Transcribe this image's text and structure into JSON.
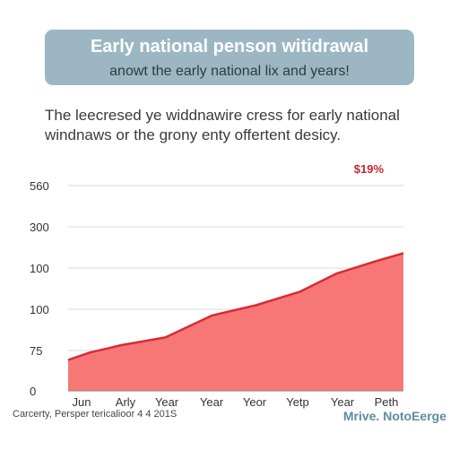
{
  "header": {
    "title": "Early national penson witidrawal",
    "subtitle": "anowt the early national lix and years!"
  },
  "description": {
    "line1": "The leecresed ye widdnawire cress for early national",
    "line2": "windnaws or the grony enty offertent desicy."
  },
  "footer": {
    "source": "Carcerty, Persper tericalioor 4 4 201S",
    "brand": "Mrive. NotoEerge"
  },
  "colors": {
    "banner": "#9cb7c3",
    "area_fill": "#f66b6b",
    "line": "#d92b35",
    "annotation": "#c4282f"
  },
  "chart_data": {
    "type": "area",
    "title": "Early national penson witidrawal",
    "categories": [
      "Jun",
      "Arly",
      "Year",
      "Year",
      "Yeor",
      "Yetp",
      "Year",
      "Peth"
    ],
    "y_tick_labels": [
      "0",
      "75",
      "100",
      "100",
      "300",
      "560"
    ],
    "grid": true,
    "annotation": "$19%",
    "values": [
      0.125,
      0.185,
      0.216,
      0.305,
      0.346,
      0.4,
      0.474,
      0.556
    ],
    "points": [
      {
        "x": 0.0,
        "y": 0.125
      },
      {
        "x": 0.065,
        "y": 0.155
      },
      {
        "x": 0.16,
        "y": 0.185
      },
      {
        "x": 0.29,
        "y": 0.216
      },
      {
        "x": 0.43,
        "y": 0.305
      },
      {
        "x": 0.56,
        "y": 0.346
      },
      {
        "x": 0.69,
        "y": 0.4
      },
      {
        "x": 0.8,
        "y": 0.474
      },
      {
        "x": 0.92,
        "y": 0.525
      },
      {
        "x": 1.0,
        "y": 0.556
      }
    ]
  }
}
